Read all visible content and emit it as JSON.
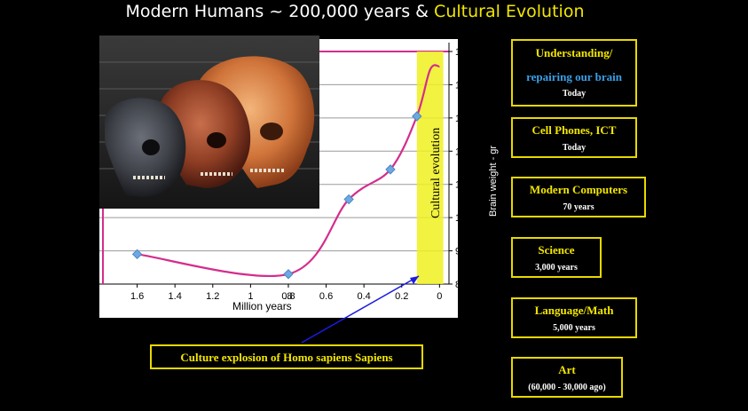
{
  "title": {
    "part1": "Modern Humans ~ 200,000 years & ",
    "part2": "Cultural Evolution"
  },
  "colors": {
    "accent": "#f2e600",
    "curve": "#d42d8c",
    "marker": "#6ea8e0",
    "band": "#f0f020"
  },
  "chart_data": {
    "type": "line",
    "xlabel": "Million years",
    "ylabel": "Brain weight - gr",
    "xlim": [
      1.8,
      -0.05
    ],
    "ylim": [
      800,
      1500
    ],
    "x_ticks": [
      ".8",
      "1.6",
      "1.4",
      "1.2",
      "1",
      "0.8",
      "0.6",
      "0.4",
      "0.2",
      "0"
    ],
    "y_ticks": [
      "1500",
      "1400",
      "1300",
      "1200",
      "1100",
      "1000",
      "900",
      "800"
    ],
    "series": [
      {
        "x": [
          1.6,
          0.8,
          0.48,
          0.26,
          0.12,
          0.05,
          0.0
        ],
        "values": [
          890,
          830,
          1055,
          1145,
          1305,
          1445,
          1455
        ]
      }
    ],
    "band_label": "Cultural evolution",
    "annotation": "Culture explosion of  Homo sapiens Sapiens"
  },
  "milestones": [
    {
      "title": "Understanding/",
      "title2": "repairing our brain",
      "sub": "Today"
    },
    {
      "title": "Cell Phones, ICT",
      "sub": "Today"
    },
    {
      "title": "Modern Computers",
      "sub": "70 years"
    },
    {
      "title": "Science",
      "sub": "3,000 years"
    },
    {
      "title": "Language/Math",
      "sub": "5,000 years"
    },
    {
      "title": "Art",
      "sub": "(60,000 - 30,000 ago)"
    }
  ]
}
